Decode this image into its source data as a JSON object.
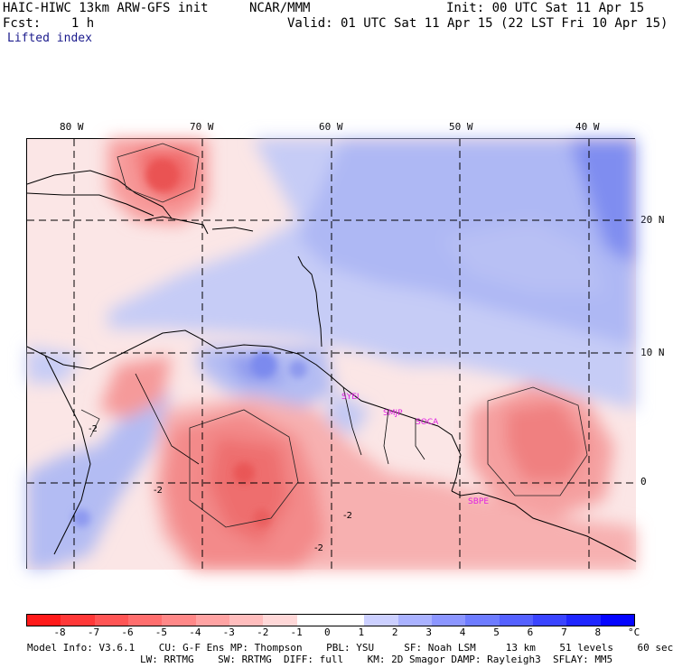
{
  "header": {
    "model": "HAIC-HIWC 13km ARW-GFS init",
    "org": "NCAR/MMM",
    "init": "Init: 00 UTC Sat 11 Apr 15",
    "fcst": "Fcst:    1 h",
    "valid": "Valid: 01 UTC Sat 11 Apr 15 (22 LST Fri 10 Apr 15)",
    "field": "Lifted index"
  },
  "lon_labels": [
    "80 W",
    "70 W",
    "60 W",
    "50 W",
    "40 W"
  ],
  "lat_labels": [
    "20 N",
    "10 N",
    "0"
  ],
  "station_labels": [
    "SYEI",
    "SMJP",
    "SOCA",
    "SBPE"
  ],
  "contour_labels": [
    "-2",
    "-2",
    "-2",
    "-2"
  ],
  "colorbar": {
    "ticks": [
      "-8",
      "-7",
      "-6",
      "-5",
      "-4",
      "-3",
      "-2",
      "-1",
      "0",
      "1",
      "2",
      "3",
      "4",
      "5",
      "6",
      "7",
      "8"
    ],
    "unit": "°C",
    "colors": [
      "#ff1a1a",
      "#ff3838",
      "#ff5555",
      "#ff6e6e",
      "#ff8888",
      "#ffa3a3",
      "#ffbdbd",
      "#ffd8d8",
      "#ffffff",
      "#ffffff",
      "#ccd0ff",
      "#aab2ff",
      "#8c96ff",
      "#6e7cff",
      "#5561ff",
      "#3a44ff",
      "#1f26ff",
      "#0505ff"
    ]
  },
  "footer": {
    "line1": "Model Info: V3.6.1    CU: G-F Ens MP: Thompson    PBL: YSU     SF: Noah LSM     13 km    51 levels    60 sec",
    "line2": "LW: RRTMG    SW: RRTMG  DIFF: full    KM: 2D Smagor DAMP: Rayleigh3  SFLAY: MM5"
  },
  "colors": {
    "unstable": "#f7a3a3",
    "stable": "#aeb8f4",
    "station": "#e020e0"
  }
}
